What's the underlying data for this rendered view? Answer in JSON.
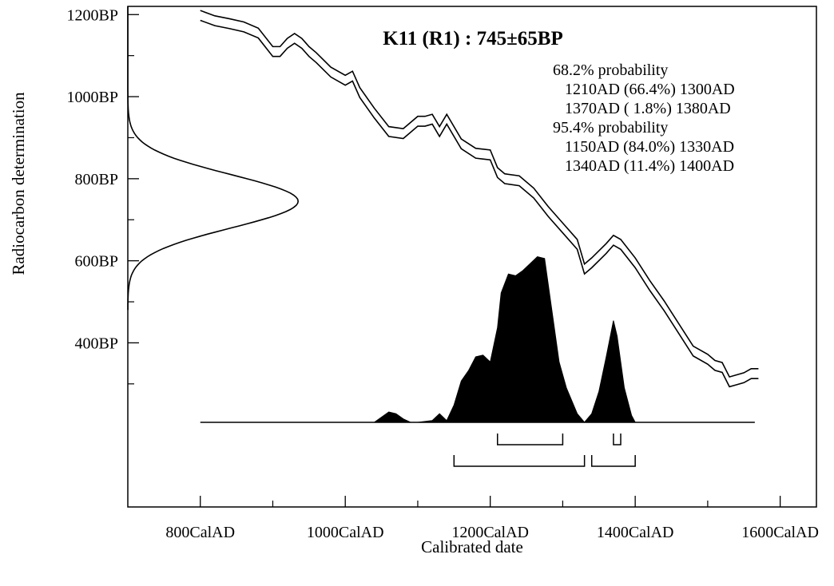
{
  "chart_data": {
    "type": "line",
    "title": "K11 (R1) : 745±65BP",
    "xlabel": "Calibrated date",
    "ylabel": "Radiocarbon determination",
    "xlim": [
      700,
      1650
    ],
    "ylim": [
      0,
      1220
    ],
    "x_ticks": [
      {
        "value": 800,
        "label": "800CalAD"
      },
      {
        "value": 1000,
        "label": "1000CalAD"
      },
      {
        "value": 1200,
        "label": "1200CalAD"
      },
      {
        "value": 1400,
        "label": "1400CalAD"
      },
      {
        "value": 1600,
        "label": "1600CalAD"
      }
    ],
    "x_minor_ticks": [
      900,
      1100,
      1300,
      1500
    ],
    "y_ticks": [
      {
        "value": 1200,
        "label": "1200BP"
      },
      {
        "value": 1000,
        "label": "1000BP"
      },
      {
        "value": 800,
        "label": "800BP"
      },
      {
        "value": 600,
        "label": "600BP"
      },
      {
        "value": 400,
        "label": "400BP"
      }
    ],
    "y_minor_ticks": [
      1100,
      900,
      700,
      500,
      300
    ],
    "measurement": {
      "mean_bp": 745,
      "sigma": 65
    },
    "calibration_curve": {
      "offset_bp": 12,
      "x": [
        800,
        820,
        840,
        860,
        880,
        900,
        910,
        920,
        930,
        940,
        950,
        960,
        980,
        1000,
        1010,
        1020,
        1040,
        1060,
        1080,
        1100,
        1110,
        1120,
        1130,
        1140,
        1160,
        1180,
        1190,
        1200,
        1210,
        1220,
        1240,
        1260,
        1280,
        1300,
        1320,
        1330,
        1340,
        1360,
        1370,
        1380,
        1400,
        1420,
        1440,
        1460,
        1480,
        1500,
        1510,
        1520,
        1530,
        1540,
        1550,
        1560,
        1570
      ],
      "y": [
        1198,
        1185,
        1178,
        1170,
        1155,
        1110,
        1110,
        1130,
        1142,
        1130,
        1110,
        1095,
        1060,
        1040,
        1050,
        1010,
        960,
        915,
        910,
        940,
        940,
        945,
        915,
        945,
        885,
        862,
        860,
        858,
        815,
        800,
        795,
        765,
        720,
        680,
        640,
        580,
        595,
        630,
        650,
        640,
        595,
        540,
        490,
        435,
        380,
        360,
        345,
        340,
        305,
        310,
        315,
        325,
        325
      ]
    },
    "radiocarbon_density": {
      "description": "Gaussian of measurement 745±65BP drawn along y-axis"
    },
    "calibrated_distribution": {
      "x": [
        1040,
        1050,
        1060,
        1070,
        1080,
        1090,
        1100,
        1120,
        1130,
        1140,
        1150,
        1160,
        1170,
        1180,
        1190,
        1200,
        1210,
        1215,
        1225,
        1235,
        1245,
        1255,
        1265,
        1275,
        1285,
        1295,
        1305,
        1320,
        1330,
        1340,
        1350,
        1360,
        1370,
        1375,
        1385,
        1395,
        1400
      ],
      "density": [
        0,
        0.03,
        0.06,
        0.05,
        0.02,
        0,
        0,
        0.01,
        0.05,
        0.01,
        0.1,
        0.24,
        0.3,
        0.38,
        0.39,
        0.35,
        0.55,
        0.75,
        0.86,
        0.85,
        0.88,
        0.92,
        0.96,
        0.95,
        0.65,
        0.35,
        0.2,
        0.05,
        0,
        0.05,
        0.18,
        0.38,
        0.59,
        0.5,
        0.2,
        0.04,
        0
      ]
    },
    "ranges_68": [
      [
        1210,
        1300
      ],
      [
        1370,
        1380
      ]
    ],
    "ranges_95": [
      [
        1150,
        1330
      ],
      [
        1340,
        1400
      ]
    ],
    "annotations": [
      "68.2% probability",
      "1210AD (66.4%) 1300AD",
      "1370AD ( 1.8%) 1380AD",
      "95.4% probability",
      "1150AD (84.0%) 1330AD",
      "1340AD (11.4%) 1400AD"
    ]
  }
}
